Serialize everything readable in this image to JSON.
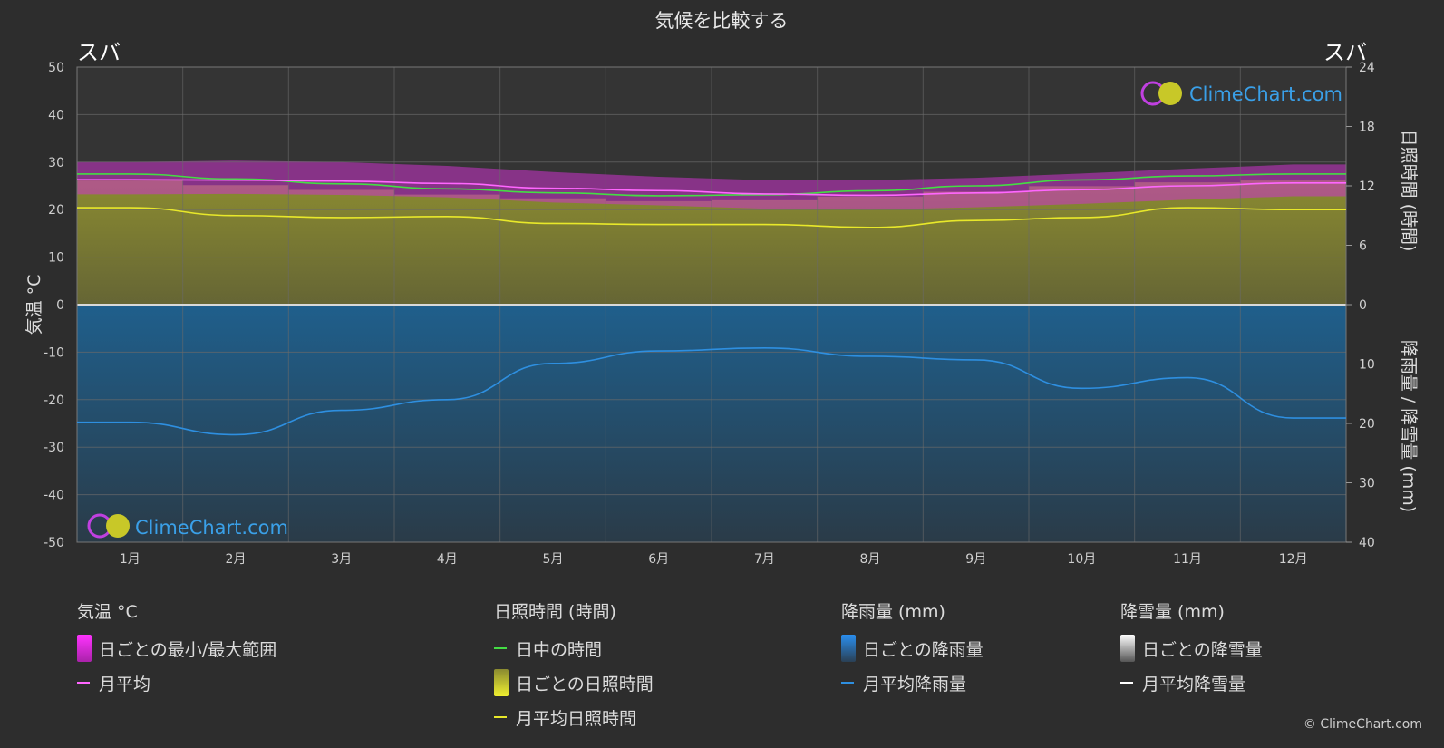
{
  "chart_data": {
    "type": "area",
    "title": "気候を比較する",
    "location_left": "スバ",
    "location_right": "スバ",
    "brand": "ClimeChart.com",
    "copyright": "© ClimeChart.com",
    "months": [
      "1月",
      "2月",
      "3月",
      "4月",
      "5月",
      "6月",
      "7月",
      "8月",
      "9月",
      "10月",
      "11月",
      "12月"
    ],
    "y_left": {
      "label": "気温 °C",
      "ticks": [
        50,
        40,
        30,
        20,
        10,
        0,
        -10,
        -20,
        -30,
        -40,
        -50
      ],
      "range": [
        -50,
        50
      ]
    },
    "y_right_top": {
      "label": "日照時間 (時間)",
      "ticks": [
        24,
        18,
        12,
        6,
        0
      ],
      "range": [
        0,
        24
      ]
    },
    "y_right_bottom": {
      "label": "降雨量 / 降雪量 (mm)",
      "ticks": [
        0,
        10,
        20,
        30,
        40
      ],
      "range": [
        0,
        40
      ]
    },
    "grid": true,
    "series": [
      {
        "name": "日中の時間",
        "unit": "時間",
        "color": "#44dd44",
        "values": [
          13.2,
          12.7,
          12.2,
          11.7,
          11.3,
          11.0,
          11.1,
          11.5,
          12.0,
          12.6,
          13.0,
          13.2
        ]
      },
      {
        "name": "月平均日照時間",
        "unit": "時間",
        "color": "#e8e82a",
        "values": [
          9.8,
          9.0,
          8.8,
          8.9,
          8.2,
          8.1,
          8.1,
          7.8,
          8.5,
          8.8,
          9.8,
          9.6
        ]
      },
      {
        "name": "月平均",
        "unit": "°C",
        "color": "#ff66ff",
        "values": [
          26.3,
          26.2,
          26.0,
          25.5,
          24.5,
          24.0,
          23.3,
          23.0,
          23.5,
          24.2,
          25.0,
          25.6
        ]
      },
      {
        "name": "月平均降雨量",
        "unit": "mm",
        "color": "#2e8fe0",
        "values": [
          19.8,
          21.9,
          17.8,
          16.0,
          9.9,
          7.8,
          7.3,
          8.7,
          9.3,
          14.1,
          12.3,
          19.1
        ]
      }
    ],
    "temp_range": {
      "min": [
        23.2,
        23.3,
        23.1,
        22.6,
        21.5,
        20.9,
        20.2,
        20.0,
        20.5,
        21.2,
        22.1,
        22.8
      ],
      "max": [
        30.0,
        30.3,
        30.0,
        29.2,
        27.9,
        26.9,
        26.2,
        26.2,
        26.7,
        27.6,
        28.6,
        29.5
      ]
    }
  },
  "legend": {
    "temp": {
      "title": "気温 °C",
      "items": [
        "日ごとの最小/最大範囲",
        "月平均"
      ]
    },
    "sun": {
      "title": "日照時間 (時間)",
      "items": [
        "日中の時間",
        "日ごとの日照時間",
        "月平均日照時間"
      ]
    },
    "rain": {
      "title": "降雨量 (mm)",
      "items": [
        "日ごとの降雨量",
        "月平均降雨量"
      ]
    },
    "snow": {
      "title": "降雪量 (mm)",
      "items": [
        "日ごとの降雪量",
        "月平均降雪量"
      ]
    }
  }
}
